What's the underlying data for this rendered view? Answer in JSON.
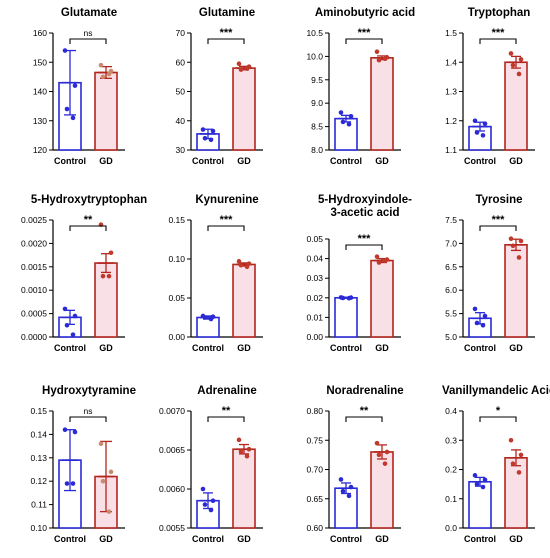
{
  "colors": {
    "control_stroke": "#2a2ad6",
    "control_fill": "#ffffff",
    "gd_stroke": "#b3261e",
    "gd_fill": "#f9dfe6",
    "control_point": "#2a2ad6",
    "gd_point": "#c0392b",
    "gd_point_light": "#c98a6e"
  },
  "chart_data": [
    {
      "type": "bar",
      "title_lines": [
        "Glutamate"
      ],
      "categories": [
        "Control",
        "GD"
      ],
      "values": [
        143,
        146.5
      ],
      "errors": [
        11,
        2
      ],
      "points": [
        [
          154,
          142,
          134,
          131
        ],
        [
          149,
          147,
          145,
          146
        ]
      ],
      "ylim": [
        120,
        160
      ],
      "yticks": [
        "120",
        "130",
        "140",
        "150",
        "160"
      ],
      "yvalues": [
        120,
        130,
        140,
        150,
        160
      ],
      "significance": "ns",
      "error_style": "sd"
    },
    {
      "type": "bar",
      "title_lines": [
        "Glutamine"
      ],
      "categories": [
        "Control",
        "GD"
      ],
      "values": [
        35.5,
        58
      ],
      "errors": [
        1.6,
        0.6
      ],
      "points": [
        [
          37,
          36.5,
          34,
          33.5
        ],
        [
          59.5,
          58.5,
          57.5,
          57.8
        ]
      ],
      "ylim": [
        30,
        70
      ],
      "yticks": [
        "30",
        "40",
        "50",
        "60",
        "70"
      ],
      "yvalues": [
        30,
        40,
        50,
        60,
        70
      ],
      "significance": "***",
      "error_style": "sem"
    },
    {
      "type": "bar",
      "title_lines": [
        "Aminobutyric acid"
      ],
      "categories": [
        "Control",
        "GD"
      ],
      "values": [
        8.67,
        9.97
      ],
      "errors": [
        0.07,
        0.04
      ],
      "points": [
        [
          8.8,
          8.72,
          8.6,
          8.55
        ],
        [
          10.1,
          9.98,
          9.92,
          9.95
        ]
      ],
      "ylim": [
        8.0,
        10.5
      ],
      "yticks": [
        "8.0",
        "8.5",
        "9.0",
        "9.5",
        "10.0",
        "10.5"
      ],
      "yvalues": [
        8.0,
        8.5,
        9.0,
        9.5,
        10.0,
        10.5
      ],
      "significance": "***",
      "error_style": "sem"
    },
    {
      "type": "bar",
      "title_lines": [
        "Tryptophan"
      ],
      "categories": [
        "Control",
        "GD"
      ],
      "values": [
        1.18,
        1.4
      ],
      "errors": [
        0.015,
        0.02
      ],
      "points": [
        [
          1.2,
          1.19,
          1.16,
          1.15
        ],
        [
          1.43,
          1.41,
          1.39,
          1.36
        ]
      ],
      "ylim": [
        1.1,
        1.5
      ],
      "yticks": [
        "1.1",
        "1.2",
        "1.3",
        "1.4",
        "1.5"
      ],
      "yvalues": [
        1.1,
        1.2,
        1.3,
        1.4,
        1.5
      ],
      "significance": "***",
      "error_style": "sem"
    },
    {
      "type": "bar",
      "title_lines": [
        "5-Hydroxytryptophan"
      ],
      "categories": [
        "Control",
        "GD"
      ],
      "values": [
        0.00042,
        0.00158
      ],
      "errors": [
        0.00015,
        0.0002
      ],
      "points": [
        [
          0.0006,
          0.00045,
          0.00025,
          5e-05
        ],
        [
          0.0024,
          0.0018,
          0.0013,
          0.0013
        ]
      ],
      "ylim": [
        0,
        0.0025
      ],
      "yticks": [
        "0.0000",
        "0.0005",
        "0.0010",
        "0.0015",
        "0.0020",
        "0.0025"
      ],
      "yvalues": [
        0,
        0.0005,
        0.001,
        0.0015,
        0.002,
        0.0025
      ],
      "significance": "**",
      "error_style": "sem"
    },
    {
      "type": "bar",
      "title_lines": [
        "Kynurenine"
      ],
      "categories": [
        "Control",
        "GD"
      ],
      "values": [
        0.025,
        0.093
      ],
      "errors": [
        0.002,
        0.002
      ],
      "points": [
        [
          0.027,
          0.026,
          0.025,
          0.023
        ],
        [
          0.097,
          0.094,
          0.092,
          0.09
        ]
      ],
      "ylim": [
        0,
        0.15
      ],
      "yticks": [
        "0.00",
        "0.05",
        "0.10",
        "0.15"
      ],
      "yvalues": [
        0,
        0.05,
        0.1,
        0.15
      ],
      "significance": "***",
      "error_style": "sem"
    },
    {
      "type": "bar",
      "title_lines": [
        "5-Hydroxyindole-",
        "3-acetic acid"
      ],
      "categories": [
        "Control",
        "GD"
      ],
      "values": [
        0.02,
        0.039
      ],
      "errors": [
        0.0003,
        0.001
      ],
      "points": [
        [
          0.0202,
          0.0201,
          0.0199,
          0.0198
        ],
        [
          0.041,
          0.0395,
          0.038,
          0.039
        ]
      ],
      "ylim": [
        0,
        0.05
      ],
      "yticks": [
        "0.00",
        "0.01",
        "0.02",
        "0.03",
        "0.04",
        "0.05"
      ],
      "yvalues": [
        0,
        0.01,
        0.02,
        0.03,
        0.04,
        0.05
      ],
      "significance": "***",
      "error_style": "sem"
    },
    {
      "type": "bar",
      "title_lines": [
        "Tyrosine"
      ],
      "categories": [
        "Control",
        "GD"
      ],
      "values": [
        5.4,
        6.97
      ],
      "errors": [
        0.12,
        0.12
      ],
      "points": [
        [
          5.6,
          5.45,
          5.3,
          5.25
        ],
        [
          7.1,
          7.05,
          6.95,
          6.7
        ]
      ],
      "ylim": [
        5.0,
        7.5
      ],
      "yticks": [
        "5.0",
        "5.5",
        "6.0",
        "6.5",
        "7.0",
        "7.5"
      ],
      "yvalues": [
        5.0,
        5.5,
        6.0,
        6.5,
        7.0,
        7.5
      ],
      "significance": "***",
      "error_style": "sem"
    },
    {
      "type": "bar",
      "title_lines": [
        "Hydroxytyramine"
      ],
      "categories": [
        "Control",
        "GD"
      ],
      "values": [
        0.129,
        0.122
      ],
      "errors": [
        0.013,
        0.015
      ],
      "points": [
        [
          0.142,
          0.141,
          0.119,
          0.119
        ],
        [
          0.136,
          0.124,
          0.12,
          0.107
        ]
      ],
      "ylim": [
        0.1,
        0.15
      ],
      "yticks": [
        "0.10",
        "0.11",
        "0.12",
        "0.13",
        "0.14",
        "0.15"
      ],
      "yvalues": [
        0.1,
        0.11,
        0.12,
        0.13,
        0.14,
        0.15
      ],
      "significance": "ns",
      "error_style": "sd"
    },
    {
      "type": "bar",
      "title_lines": [
        "Adrenaline"
      ],
      "categories": [
        "Control",
        "GD"
      ],
      "values": [
        0.00585,
        0.00651
      ],
      "errors": [
        0.0001,
        6e-05
      ],
      "points": [
        [
          0.006,
          0.00585,
          0.0058,
          0.00573
        ],
        [
          0.00663,
          0.00651,
          0.00648,
          0.00642
        ]
      ],
      "ylim": [
        0.0055,
        0.007
      ],
      "yticks": [
        "0.0055",
        "0.0060",
        "0.0065",
        "0.0070"
      ],
      "yvalues": [
        0.0055,
        0.006,
        0.0065,
        0.007
      ],
      "significance": "**",
      "error_style": "sem"
    },
    {
      "type": "bar",
      "title_lines": [
        "Noradrenaline"
      ],
      "categories": [
        "Control",
        "GD"
      ],
      "values": [
        0.668,
        0.73
      ],
      "errors": [
        0.009,
        0.012
      ],
      "points": [
        [
          0.683,
          0.67,
          0.663,
          0.655
        ],
        [
          0.745,
          0.73,
          0.725,
          0.71
        ]
      ],
      "ylim": [
        0.6,
        0.8
      ],
      "yticks": [
        "0.60",
        "0.65",
        "0.70",
        "0.75",
        "0.80"
      ],
      "yvalues": [
        0.6,
        0.65,
        0.7,
        0.75,
        0.8
      ],
      "significance": "**",
      "error_style": "sem"
    },
    {
      "type": "bar",
      "title_lines": [
        "Vanillymandelic Acid"
      ],
      "categories": [
        "Control",
        "GD"
      ],
      "values": [
        0.158,
        0.24
      ],
      "errors": [
        0.015,
        0.027
      ],
      "points": [
        [
          0.18,
          0.165,
          0.15,
          0.14
        ],
        [
          0.3,
          0.25,
          0.22,
          0.19
        ]
      ],
      "ylim": [
        0,
        0.4
      ],
      "yticks": [
        "0.0",
        "0.1",
        "0.2",
        "0.3",
        "0.4"
      ],
      "yvalues": [
        0,
        0.1,
        0.2,
        0.3,
        0.4
      ],
      "significance": "*",
      "error_style": "sem"
    }
  ]
}
